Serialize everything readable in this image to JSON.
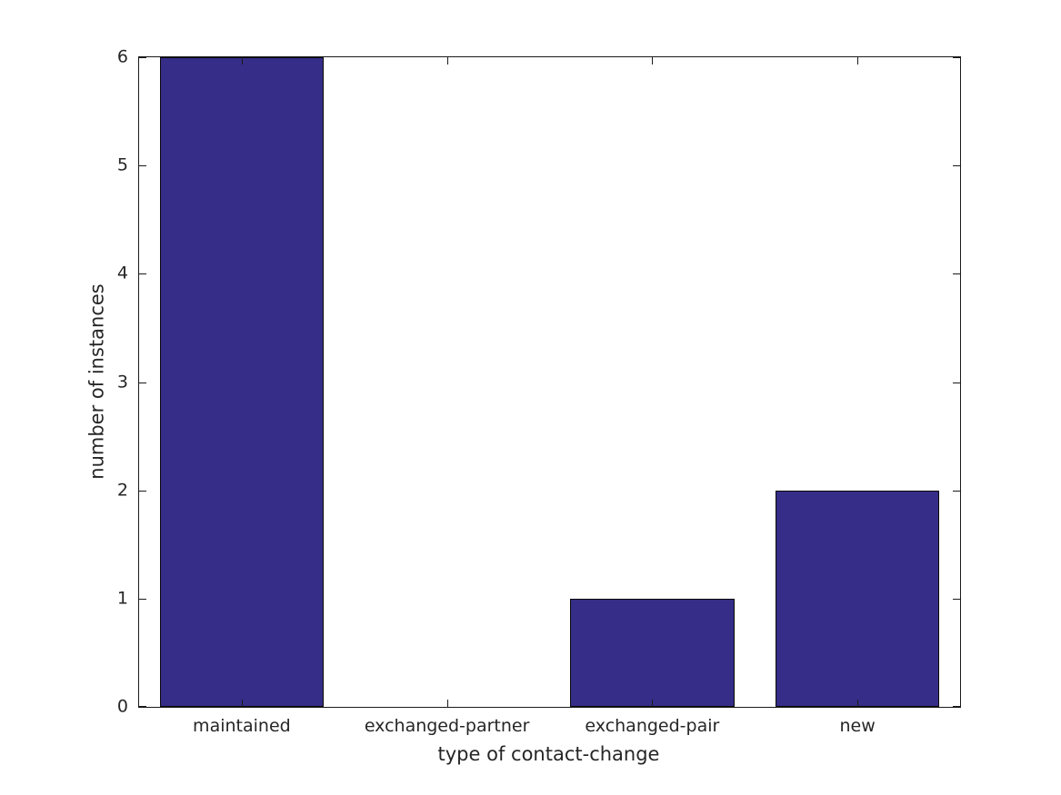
{
  "chart_data": {
    "type": "bar",
    "title": "",
    "xlabel": "type of contact-change",
    "ylabel": "number of instances",
    "categories": [
      "maintained",
      "exchanged-partner",
      "exchanged-pair",
      "new"
    ],
    "values": [
      6,
      0,
      1,
      2
    ],
    "ylim": [
      0,
      6
    ],
    "yticks": [
      0,
      1,
      2,
      3,
      4,
      5,
      6
    ],
    "bar_width_fraction": 0.8,
    "bar_color": "#352d87",
    "bar_edge_color": "#0a0a0a",
    "axis_color": "#1a1a1a",
    "text_color": "#262626",
    "background_color": "#ffffff",
    "grid": false,
    "legend": null,
    "tick_direction": "in",
    "box": true
  }
}
